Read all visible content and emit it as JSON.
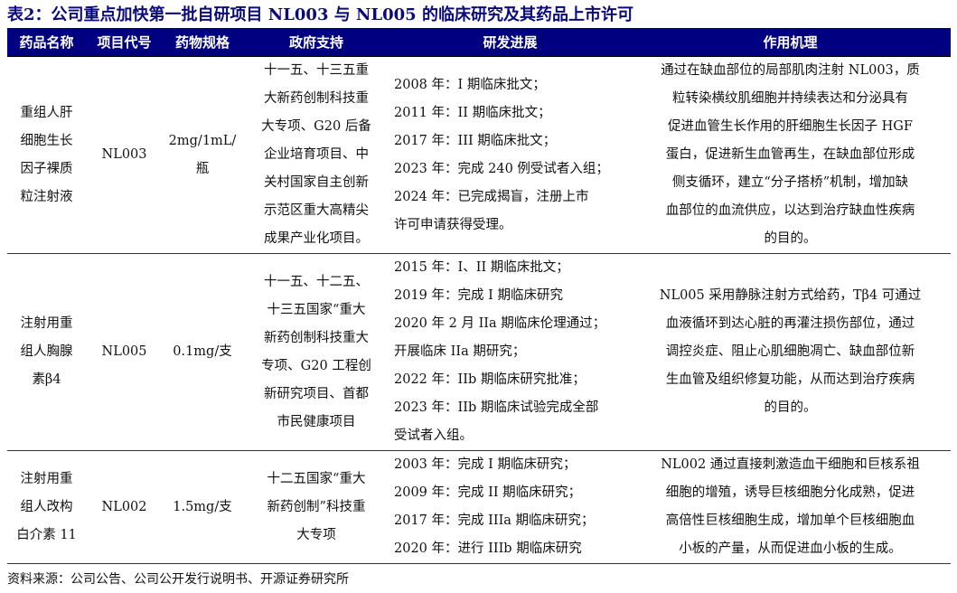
{
  "title": "表2：公司重点加快第一批自研项目 NL003 与 NL005 的临床研究及其药品上市许可",
  "headers": [
    "药品名称",
    "项目代号",
    "药物规格",
    "政府支持",
    "研发进展",
    "作用机理"
  ],
  "rows": [
    {
      "name": [
        "重组人肝",
        "细胞生长",
        "因子裸质",
        "粒注射液"
      ],
      "code": "NL003",
      "spec": [
        "2mg/1mL/",
        "瓶"
      ],
      "gov": [
        "十一五、十三五重",
        "大新药创制科技重",
        "大专项、G20 后备",
        "企业培育项目、中",
        "关村国家自主创新",
        "示范区重大高精尖",
        "成果产业化项目。"
      ],
      "progress": [
        "2008 年：I 期临床批文；",
        "2011 年：II 期临床批文；",
        "2017 年：III 期临床批文；",
        "2023 年：完成 240 例受试者入组；",
        "2024 年：已完成揭盲，注册上市",
        "许可申请获得受理。"
      ],
      "mech": [
        "通过在缺血部位的局部肌肉注射 NL003，质",
        "粒转染横纹肌细胞并持续表达和分泌具有",
        "促进血管生长作用的肝细胞生长因子 HGF",
        "蛋白，促进新生血管再生，在缺血部位形成",
        "侧支循环，建立“分子搭桥”机制，增加缺",
        "血部位的血流供应，以达到治疗缺血性疾病",
        "的目的。"
      ]
    },
    {
      "name": [
        "注射用重",
        "组人胸腺",
        "素β4"
      ],
      "code": "NL005",
      "spec": [
        "0.1mg/支"
      ],
      "gov": [
        "十一五、十二五、",
        "十三五国家“重大",
        "新药创制科技重大",
        "专项、G20 工程创",
        "新研究项目、首都",
        "市民健康项目"
      ],
      "progress": [
        "2015 年：I、II 期临床批文；",
        "2019 年：完成 I 期临床研究",
        "2020 年 2 月 IIa 期临床伦理通过；",
        "开展临床 IIa 期研究；",
        "2022 年：IIb 期临床研究批准；",
        "2023 年：IIb 期临床试验完成全部",
        "受试者入组。"
      ],
      "mech": [
        "NL005 采用静脉注射方式给药，Tβ4 可通过",
        "血液循环到达心脏的再灌注损伤部位，通过",
        "调控炎症、阻止心肌细胞凋亡、缺血部位新",
        "生血管及组织修复功能，从而达到治疗疾病",
        "的目的。"
      ]
    },
    {
      "name": [
        "注射用重",
        "组人改构",
        "白介素 11"
      ],
      "code": "NL002",
      "spec": [
        "1.5mg/支"
      ],
      "gov": [
        "十二五国家“重大",
        "新药创制”科技重",
        "大专项"
      ],
      "progress": [
        "2003 年：完成 I 期临床研究；",
        "2009 年：完成 II 期临床研究；",
        "2017 年：完成 IIIa 期临床研究；",
        "2020 年：进行 IIIb 期临床研究"
      ],
      "mech": [
        "NL002 通过直接刺激造血干细胞和巨核系祖",
        "细胞的增殖，诱导巨核细胞分化成熟，促进",
        "高倍性巨核细胞生成，增加单个巨核细胞血",
        "小板的产量，从而促进血小板的生成。"
      ]
    }
  ],
  "source": "资料来源：公司公告、公司公开发行说明书、开源证券研究所",
  "colors": {
    "header_bg": "#000080",
    "title": "#0a0a7a"
  }
}
